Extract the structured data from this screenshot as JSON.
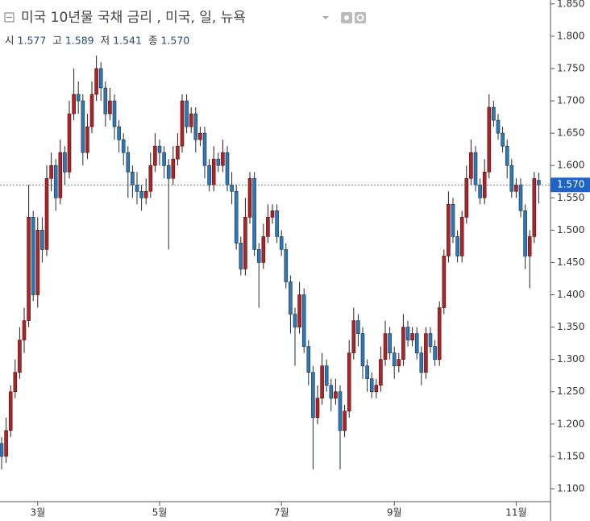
{
  "chart_data": {
    "type": "candlestick",
    "title": "미국 10년물 국채 금리 , 미국, 일, 뉴욕",
    "ohlc_legend": [
      {
        "name": "시",
        "value": 1.577
      },
      {
        "name": "고",
        "value": 1.589
      },
      {
        "name": "저",
        "value": 1.541
      },
      {
        "name": "종",
        "value": 1.57,
        "value_label": "1.570"
      }
    ],
    "categories": [
      null,
      null,
      null,
      null,
      null,
      null,
      null,
      null,
      "3월",
      null,
      null,
      null,
      null,
      null,
      null,
      null,
      null,
      null,
      null,
      null,
      null,
      null,
      null,
      null,
      null,
      null,
      null,
      null,
      null,
      null,
      null,
      null,
      null,
      null,
      null,
      "5월",
      null,
      null,
      null,
      null,
      null,
      null,
      null,
      null,
      null,
      null,
      null,
      null,
      null,
      null,
      null,
      null,
      null,
      null,
      null,
      null,
      null,
      null,
      null,
      null,
      null,
      null,
      "7월",
      null,
      null,
      null,
      null,
      null,
      null,
      null,
      null,
      null,
      null,
      null,
      null,
      null,
      null,
      null,
      null,
      null,
      null,
      null,
      null,
      null,
      null,
      null,
      null,
      "9월",
      null,
      null,
      null,
      null,
      null,
      null,
      null,
      null,
      null,
      null,
      null,
      null,
      null,
      null,
      null,
      null,
      null,
      null,
      null,
      null,
      null,
      null,
      null,
      null,
      null,
      null,
      "11월",
      null,
      null,
      null,
      null,
      null
    ],
    "open": [
      1.17,
      1.15,
      1.19,
      1.25,
      1.28,
      1.33,
      1.36,
      1.52,
      1.4,
      1.5,
      1.47,
      1.58,
      1.6,
      1.55,
      1.62,
      1.59,
      1.68,
      1.71,
      1.7,
      1.62,
      1.66,
      1.71,
      1.75,
      1.72,
      1.68,
      1.7,
      1.66,
      1.64,
      1.62,
      1.59,
      1.57,
      1.56,
      1.55,
      1.56,
      1.6,
      1.63,
      1.62,
      1.6,
      1.58,
      1.61,
      1.63,
      1.7,
      1.66,
      1.68,
      1.64,
      1.65,
      1.6,
      1.57,
      1.61,
      1.6,
      1.62,
      1.57,
      1.56,
      1.48,
      1.44,
      1.52,
      1.58,
      1.47,
      1.45,
      1.49,
      1.52,
      1.53,
      1.49,
      1.47,
      1.42,
      1.37,
      1.35,
      1.4,
      1.32,
      1.28,
      1.21,
      1.24,
      1.29,
      1.26,
      1.24,
      1.25,
      1.19,
      1.22,
      1.31,
      1.36,
      1.34,
      1.29,
      1.27,
      1.25,
      1.26,
      1.3,
      1.34,
      1.31,
      1.29,
      1.3,
      1.35,
      1.33,
      1.34,
      1.31,
      1.28,
      1.34,
      1.32,
      1.3,
      1.38,
      1.46,
      1.54,
      1.49,
      1.46,
      1.52,
      1.58,
      1.62,
      1.57,
      1.55,
      1.59,
      1.69,
      1.67,
      1.65,
      1.63,
      1.6,
      1.56,
      1.57,
      1.53,
      1.46,
      1.49,
      1.577
    ],
    "high": [
      1.18,
      1.21,
      1.26,
      1.3,
      1.35,
      1.38,
      1.57,
      1.53,
      1.52,
      1.52,
      1.6,
      1.62,
      1.61,
      1.64,
      1.63,
      1.7,
      1.75,
      1.73,
      1.71,
      1.68,
      1.73,
      1.77,
      1.76,
      1.73,
      1.72,
      1.71,
      1.67,
      1.65,
      1.63,
      1.6,
      1.59,
      1.57,
      1.58,
      1.62,
      1.65,
      1.64,
      1.63,
      1.61,
      1.63,
      1.65,
      1.71,
      1.71,
      1.69,
      1.69,
      1.66,
      1.66,
      1.61,
      1.63,
      1.62,
      1.64,
      1.63,
      1.59,
      1.57,
      1.49,
      1.55,
      1.59,
      1.59,
      1.48,
      1.51,
      1.54,
      1.54,
      1.54,
      1.5,
      1.48,
      1.43,
      1.38,
      1.42,
      1.41,
      1.33,
      1.29,
      1.26,
      1.31,
      1.3,
      1.27,
      1.27,
      1.26,
      1.23,
      1.33,
      1.38,
      1.37,
      1.35,
      1.3,
      1.28,
      1.27,
      1.32,
      1.36,
      1.35,
      1.32,
      1.31,
      1.37,
      1.36,
      1.35,
      1.35,
      1.32,
      1.35,
      1.35,
      1.33,
      1.39,
      1.47,
      1.56,
      1.55,
      1.5,
      1.53,
      1.6,
      1.64,
      1.63,
      1.58,
      1.61,
      1.71,
      1.7,
      1.68,
      1.66,
      1.64,
      1.61,
      1.58,
      1.58,
      1.54,
      1.5,
      1.59,
      1.589
    ],
    "low": [
      1.13,
      1.14,
      1.18,
      1.24,
      1.27,
      1.31,
      1.35,
      1.39,
      1.38,
      1.45,
      1.46,
      1.56,
      1.53,
      1.54,
      1.57,
      1.58,
      1.67,
      1.68,
      1.6,
      1.61,
      1.65,
      1.7,
      1.7,
      1.66,
      1.67,
      1.64,
      1.62,
      1.6,
      1.55,
      1.55,
      1.54,
      1.53,
      1.54,
      1.55,
      1.59,
      1.6,
      1.58,
      1.47,
      1.57,
      1.6,
      1.62,
      1.65,
      1.65,
      1.62,
      1.63,
      1.58,
      1.56,
      1.56,
      1.59,
      1.59,
      1.56,
      1.54,
      1.47,
      1.43,
      1.43,
      1.51,
      1.46,
      1.38,
      1.44,
      1.48,
      1.51,
      1.48,
      1.46,
      1.41,
      1.34,
      1.29,
      1.34,
      1.31,
      1.26,
      1.13,
      1.2,
      1.23,
      1.25,
      1.22,
      1.23,
      1.13,
      1.18,
      1.21,
      1.3,
      1.32,
      1.27,
      1.25,
      1.24,
      1.24,
      1.25,
      1.29,
      1.3,
      1.27,
      1.28,
      1.29,
      1.32,
      1.32,
      1.3,
      1.26,
      1.27,
      1.31,
      1.29,
      1.29,
      1.37,
      1.45,
      1.48,
      1.45,
      1.45,
      1.51,
      1.57,
      1.56,
      1.54,
      1.54,
      1.58,
      1.66,
      1.64,
      1.62,
      1.58,
      1.55,
      1.55,
      1.52,
      1.44,
      1.41,
      1.48,
      1.541
    ],
    "close": [
      1.15,
      1.19,
      1.25,
      1.28,
      1.33,
      1.36,
      1.52,
      1.4,
      1.5,
      1.47,
      1.58,
      1.6,
      1.55,
      1.62,
      1.59,
      1.68,
      1.71,
      1.7,
      1.62,
      1.66,
      1.71,
      1.75,
      1.72,
      1.68,
      1.7,
      1.66,
      1.64,
      1.62,
      1.59,
      1.57,
      1.56,
      1.55,
      1.56,
      1.6,
      1.63,
      1.62,
      1.6,
      1.58,
      1.61,
      1.63,
      1.7,
      1.66,
      1.68,
      1.64,
      1.65,
      1.6,
      1.57,
      1.61,
      1.6,
      1.62,
      1.57,
      1.56,
      1.48,
      1.44,
      1.52,
      1.58,
      1.47,
      1.45,
      1.49,
      1.52,
      1.53,
      1.49,
      1.47,
      1.42,
      1.37,
      1.35,
      1.4,
      1.32,
      1.28,
      1.21,
      1.24,
      1.29,
      1.26,
      1.24,
      1.25,
      1.19,
      1.22,
      1.31,
      1.36,
      1.34,
      1.29,
      1.27,
      1.25,
      1.26,
      1.3,
      1.34,
      1.31,
      1.29,
      1.3,
      1.35,
      1.33,
      1.34,
      1.31,
      1.28,
      1.34,
      1.32,
      1.3,
      1.38,
      1.46,
      1.54,
      1.49,
      1.46,
      1.52,
      1.58,
      1.62,
      1.57,
      1.55,
      1.59,
      1.69,
      1.67,
      1.65,
      1.63,
      1.6,
      1.56,
      1.57,
      1.53,
      1.46,
      1.49,
      1.58,
      1.57
    ],
    "up_color": "#a8262a",
    "down_color": "#2e78b8",
    "last_price": {
      "value": 1.57,
      "label": "1.570"
    },
    "last_color": "#1f63c6",
    "ylim": [
      1.08,
      1.856
    ],
    "yticks": [
      {
        "value": 1.1,
        "label": "1.100"
      },
      {
        "value": 1.15,
        "label": "1.150"
      },
      {
        "value": 1.2,
        "label": "1.200"
      },
      {
        "value": 1.25,
        "label": "1.250"
      },
      {
        "value": 1.3,
        "label": "1.300"
      },
      {
        "value": 1.35,
        "label": "1.350"
      },
      {
        "value": 1.4,
        "label": "1.400"
      },
      {
        "value": 1.45,
        "label": "1.450"
      },
      {
        "value": 1.5,
        "label": "1.500"
      },
      {
        "value": 1.55,
        "label": "1.550"
      },
      {
        "value": 1.6,
        "label": "1.600"
      },
      {
        "value": 1.65,
        "label": "1.650"
      },
      {
        "value": 1.7,
        "label": "1.700"
      },
      {
        "value": 1.75,
        "label": "1.750"
      },
      {
        "value": 1.8,
        "label": "1.800"
      },
      {
        "value": 1.85,
        "label": "1.850"
      }
    ]
  }
}
